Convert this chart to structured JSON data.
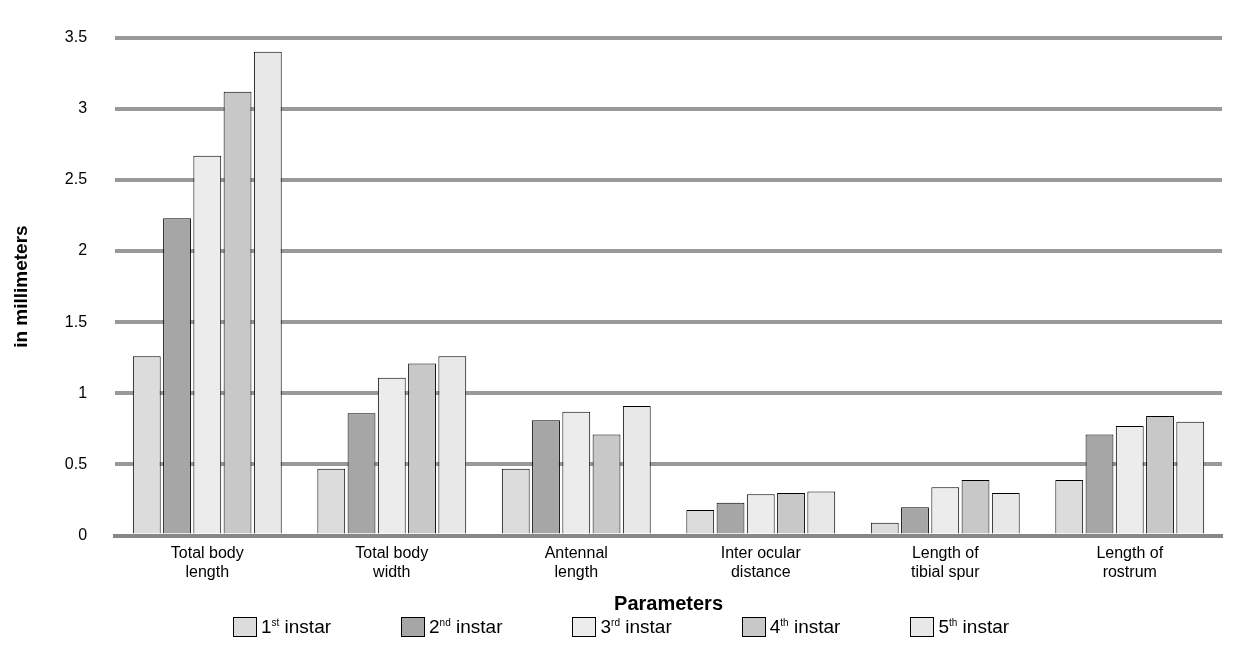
{
  "chart_data": {
    "type": "bar",
    "xlabel": "Parameters",
    "ylabel": "in millimeters",
    "categories": [
      "Total body length",
      "Total body width",
      "Antennal length",
      "Inter ocular distance",
      "Length of tibial spur",
      "Length of rostrum"
    ],
    "series": [
      {
        "name": "1$^{st}$ instar",
        "color": "#dcdcdc",
        "values": [
          1.26,
          0.47,
          0.47,
          0.18,
          0.09,
          0.39
        ]
      },
      {
        "name": "2$^{nd}$ instar",
        "color": "#a6a6a6",
        "values": [
          2.23,
          0.86,
          0.81,
          0.23,
          0.2,
          0.71
        ]
      },
      {
        "name": "3$^{rd}$ instar",
        "color": "#ececec",
        "values": [
          2.67,
          1.11,
          0.87,
          0.29,
          0.34,
          0.77
        ]
      },
      {
        "name": "4$^{th}$ instar",
        "color": "#c8c8c8",
        "values": [
          3.12,
          1.21,
          0.71,
          0.3,
          0.39,
          0.84
        ]
      },
      {
        "name": "5$^{th}$ instar",
        "color": "#e8e8e8",
        "values": [
          3.4,
          1.26,
          0.91,
          0.31,
          0.3,
          0.8
        ]
      }
    ],
    "ylim": [
      0,
      3.5
    ],
    "yticks": [
      0,
      0.5,
      1,
      1.5,
      2,
      2.5,
      3,
      3.5
    ],
    "grid": "y",
    "legend": "bottom"
  }
}
